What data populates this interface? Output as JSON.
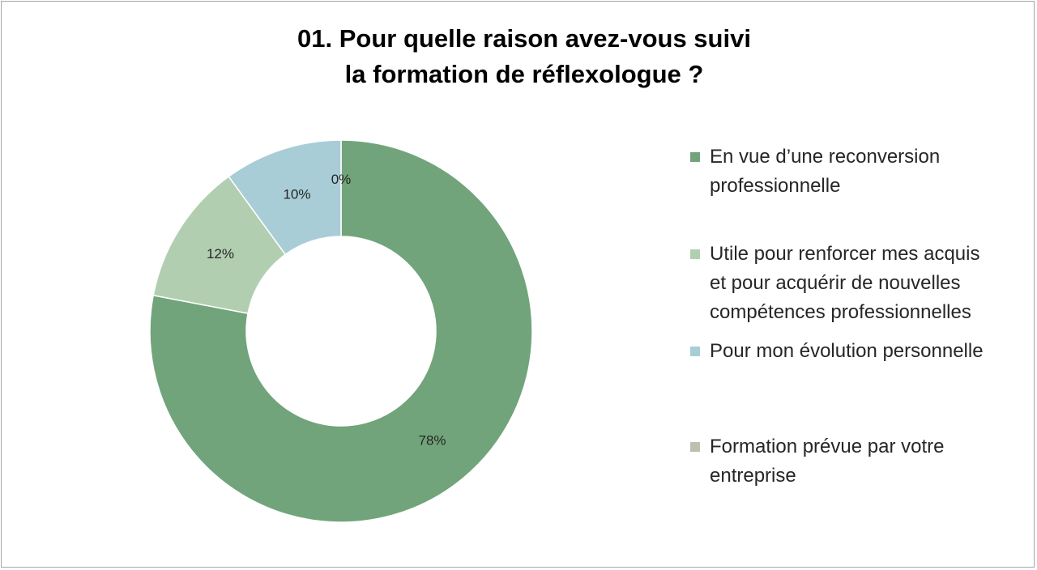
{
  "title": {
    "line1": "01. Pour quelle raison avez-vous suivi",
    "line2": "la formation de réflexologue ?"
  },
  "chart_data": {
    "type": "pie",
    "variant": "donut",
    "title": "01. Pour quelle raison avez-vous suivi la formation de réflexologue ?",
    "legend_position": "right",
    "slices": [
      {
        "label": "En vue d’une reconversion professionnelle",
        "value": 78,
        "display": "78%",
        "color": "#71a47a"
      },
      {
        "label": "Utile pour renforcer mes acquis et pour acquérir de nouvelles compétences professionnelles",
        "value": 12,
        "display": "12%",
        "color": "#b1cfb0"
      },
      {
        "label": "Pour mon évolution personnelle",
        "value": 10,
        "display": "10%",
        "color": "#a9cdd7"
      },
      {
        "label": "Formation prévue par votre entreprise",
        "value": 0,
        "display": "0%",
        "color": "#bfbfb0"
      }
    ]
  },
  "legend": {
    "items": [
      {
        "lines": [
          "En vue d’une reconversion",
          "professionnelle"
        ],
        "color": "#71a47a"
      },
      {
        "lines": [
          "Utile pour renforcer mes acquis",
          "et pour acquérir de nouvelles",
          "compétences professionnelles"
        ],
        "color": "#b1cfb0"
      },
      {
        "lines": [
          "Pour mon évolution personnelle"
        ],
        "color": "#a9cdd7"
      },
      {
        "lines": [
          "Formation prévue par votre",
          "entreprise"
        ],
        "color": "#bfbfb0"
      }
    ]
  }
}
